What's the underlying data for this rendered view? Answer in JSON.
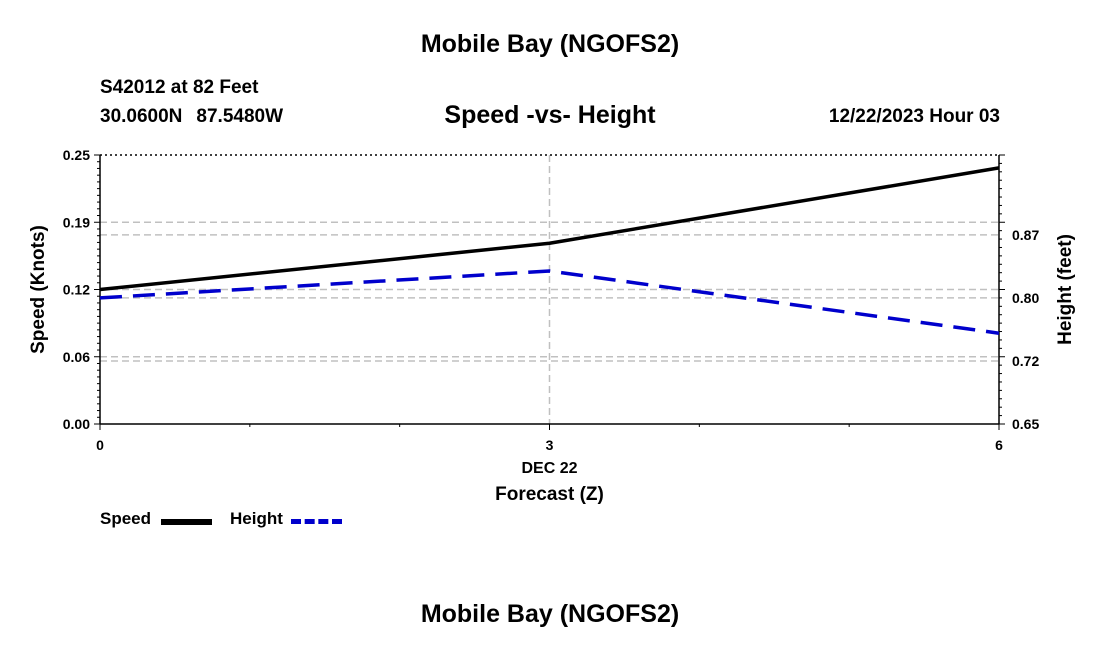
{
  "header": {
    "title": "Mobile Bay (NGOFS2)",
    "station": "S42012 at 82 Feet",
    "lat": "30.0600N",
    "lon": "87.5480W",
    "subtitle": "Speed -vs- Height",
    "timestamp": "12/22/2023 Hour 03"
  },
  "footer": {
    "title": "Mobile Bay (NGOFS2)"
  },
  "legend": {
    "speed_label": "Speed",
    "height_label": "Height"
  },
  "colors": {
    "speed": "#000000",
    "height": "#0000cc",
    "grid": "#c0c0c0"
  },
  "chart_data": {
    "type": "line",
    "title": "Speed -vs- Height",
    "xlabel": "Forecast (Z)",
    "x_date_label": "DEC 22",
    "x": [
      0,
      3,
      6
    ],
    "xticks": [
      "0",
      "3",
      "6"
    ],
    "xlim": [
      0,
      6
    ],
    "ylabel_left": "Speed (Knots)",
    "ylabel_right": "Height (feet)",
    "ylim_left": [
      0.0,
      0.25
    ],
    "ylim_right": [
      0.65,
      0.97
    ],
    "yticks_left": [
      "0.00",
      "0.06",
      "0.12",
      "0.19",
      "0.25"
    ],
    "yticks_left_values": [
      0.0,
      0.0625,
      0.125,
      0.1875,
      0.25
    ],
    "yticks_right": [
      "0.65",
      "0.72",
      "0.80",
      "0.87"
    ],
    "yticks_right_values": [
      0.65,
      0.725,
      0.8,
      0.875
    ],
    "grid": true,
    "series": [
      {
        "name": "Speed",
        "axis": "left",
        "style": "solid",
        "values": [
          0.125,
          0.168,
          0.238
        ]
      },
      {
        "name": "Height",
        "axis": "right",
        "style": "dashed",
        "values": [
          0.8,
          0.832,
          0.758
        ]
      }
    ]
  }
}
